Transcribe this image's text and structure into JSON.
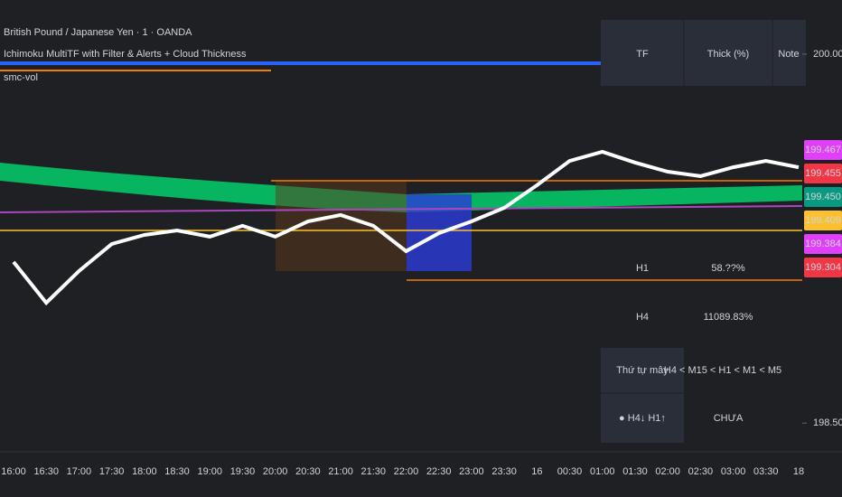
{
  "chart_data": {
    "type": "line",
    "title": "British Pound / Japanese Yen · 1 · OANDA",
    "indicators": [
      "Ichimoku MultiTF with Filter & Alerts + Cloud Thickness",
      "smc-vol"
    ],
    "categories": [
      "16:00",
      "16:30",
      "17:00",
      "17:30",
      "18:00",
      "18:30",
      "19:00",
      "19:30",
      "20:00",
      "20:30",
      "21:00",
      "21:30",
      "22:00",
      "22:30",
      "23:00",
      "23:30",
      "16",
      "00:30",
      "01:00",
      "01:30",
      "02:00",
      "02:30",
      "03:00",
      "03:30",
      "18"
    ],
    "series": [
      {
        "color": "#ffffff",
        "values": [
          199.155,
          198.989,
          199.118,
          199.228,
          199.265,
          199.283,
          199.258,
          199.302,
          199.258,
          199.32,
          199.346,
          199.302,
          199.199,
          199.272,
          199.32,
          199.375,
          199.467,
          199.566,
          199.603,
          199.559,
          199.522,
          199.504,
          199.54,
          199.566,
          199.54
        ]
      }
    ],
    "ylim": [
      198.42,
      200.22
    ],
    "yticks": [
      {
        "value": 198.5,
        "label": "198.500"
      },
      {
        "value": 200,
        "label": "200.000"
      }
    ],
    "price_tags": [
      {
        "value": 199.467,
        "label": "199.467",
        "color": "#e040fb"
      },
      {
        "value": 199.455,
        "label": "199.455",
        "color": "#f23645"
      },
      {
        "value": 199.45,
        "label": "199.450",
        "color": "#089981"
      },
      {
        "value": 199.409,
        "label": "199.409",
        "color": "#fbc02d"
      },
      {
        "value": 199.384,
        "label": "199.384",
        "color": "#e040fb"
      },
      {
        "value": 199.304,
        "label": "199.304",
        "color": "#f23645"
      }
    ],
    "thickness_table": {
      "header": [
        "TF",
        "Thick (%)",
        "Note"
      ],
      "rows": [
        [
          "H1",
          "58.??%"
        ],
        [
          "H4",
          "11089.83%"
        ]
      ]
    },
    "order_table": {
      "label": "Thứ tự mây",
      "order": "H4 < M15 < H1 < M1 < M5",
      "trend": "● H4↓ H1↑",
      "status": "CHƯA"
    }
  }
}
